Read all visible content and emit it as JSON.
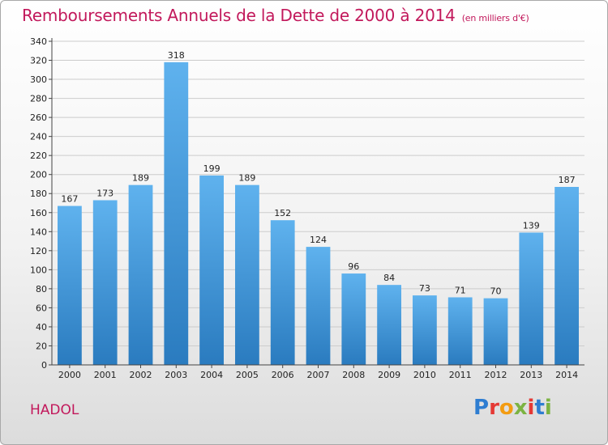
{
  "title": "Remboursements Annuels de la Dette de 2000 à 2014",
  "unit_note": "(en milliers d'€)",
  "commune": "HADOL",
  "logo": {
    "letters": [
      "P",
      "r",
      "o",
      "x",
      "i",
      "t",
      "i"
    ],
    "colors": [
      "#2e7dd1",
      "#e53935",
      "#f39c12",
      "#7cb342",
      "#e53935",
      "#2e7dd1",
      "#7cb342"
    ]
  },
  "colors": {
    "title": "#c2185b",
    "bar_top": "#5fb2ee",
    "bar_bottom": "#2a7bbf",
    "grid": "#cccccc"
  },
  "chart_data": {
    "type": "bar",
    "title": "Remboursements Annuels de la Dette de 2000 à 2014",
    "categories": [
      "2000",
      "2001",
      "2002",
      "2003",
      "2004",
      "2005",
      "2006",
      "2007",
      "2008",
      "2009",
      "2010",
      "2011",
      "2012",
      "2013",
      "2014"
    ],
    "values": [
      167,
      173,
      189,
      318,
      199,
      189,
      152,
      124,
      96,
      84,
      73,
      71,
      70,
      139,
      187
    ],
    "data_labels": [
      "167",
      "173",
      "189",
      "318",
      "199",
      "189",
      "152",
      "124",
      "96",
      "84",
      "73",
      "71",
      "70",
      "139",
      "187"
    ],
    "yticks": [
      "0",
      "20",
      "40",
      "60",
      "80",
      "100",
      "120",
      "140",
      "160",
      "180",
      "200",
      "220",
      "240",
      "260",
      "280",
      "300",
      "320",
      "340"
    ],
    "ylim": [
      0,
      340
    ],
    "grid": true
  }
}
